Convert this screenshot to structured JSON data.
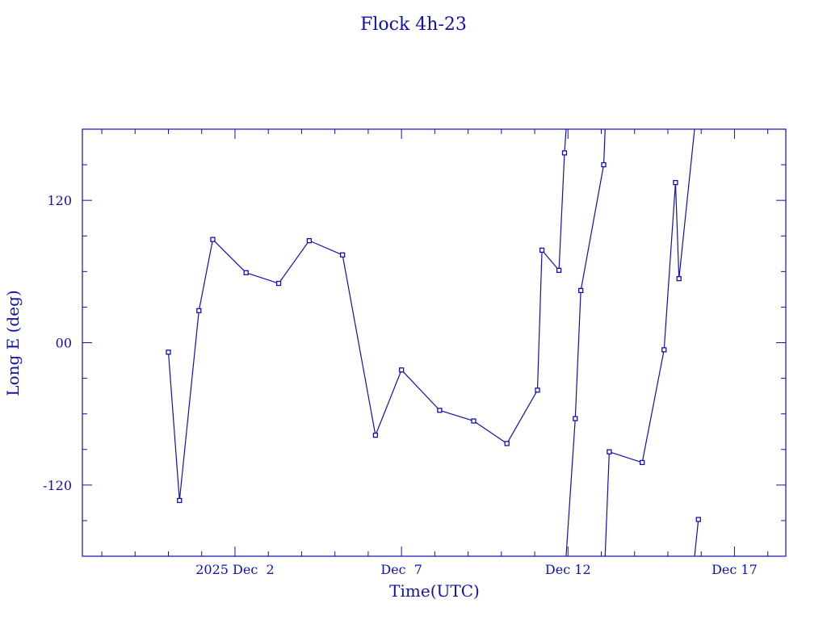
{
  "chart_data": {
    "type": "line",
    "title": "Flock 4h-23",
    "xlabel": "Time(UTC)",
    "ylabel": "Long E (deg)",
    "xlim": [
      "2025-11-27T10:00",
      "2025-12-18T13:00"
    ],
    "ylim": [
      -180,
      180
    ],
    "x_tick_labels": [
      {
        "date": "2025-12-02",
        "label": "2025 Dec  2"
      },
      {
        "date": "2025-12-07",
        "label": "Dec  7"
      },
      {
        "date": "2025-12-12",
        "label": "Dec 12"
      },
      {
        "date": "2025-12-17",
        "label": "Dec 17"
      }
    ],
    "y_tick_labels": [
      {
        "value": 120,
        "label": "120"
      },
      {
        "value": 0,
        "label": "00"
      },
      {
        "value": -120,
        "label": "-120"
      }
    ],
    "y_wraps_at": 180,
    "grid": false,
    "color": "#1010b0",
    "series": [
      {
        "points": [
          {
            "x": "2025-11-30T00:00",
            "y": -8
          },
          {
            "x": "2025-11-30T08:00",
            "y": -133
          },
          {
            "x": "2025-11-30T22:00",
            "y": 27
          },
          {
            "x": "2025-12-01T08:00",
            "y": 87
          },
          {
            "x": "2025-12-02T08:00",
            "y": 59
          },
          {
            "x": "2025-12-03T07:30",
            "y": 50
          },
          {
            "x": "2025-12-04T05:30",
            "y": 86
          },
          {
            "x": "2025-12-05T05:30",
            "y": 74
          },
          {
            "x": "2025-12-06T05:15",
            "y": -78
          },
          {
            "x": "2025-12-07T00:00",
            "y": -23
          },
          {
            "x": "2025-12-08T03:30",
            "y": -57
          },
          {
            "x": "2025-12-09T04:00",
            "y": -66
          },
          {
            "x": "2025-12-10T04:00",
            "y": -85
          },
          {
            "x": "2025-12-11T02:00",
            "y": -40
          },
          {
            "x": "2025-12-11T05:15",
            "y": 78
          },
          {
            "x": "2025-12-11T17:30",
            "y": 61
          },
          {
            "x": "2025-12-11T21:30",
            "y": 160
          },
          {
            "x": "2025-12-12T05:15",
            "y": -64
          },
          {
            "x": "2025-12-12T09:15",
            "y": 44
          },
          {
            "x": "2025-12-13T01:45",
            "y": 150
          },
          {
            "x": "2025-12-13T05:45",
            "y": -92
          },
          {
            "x": "2025-12-14T05:30",
            "y": -101
          },
          {
            "x": "2025-12-14T21:15",
            "y": -6
          },
          {
            "x": "2025-12-15T05:30",
            "y": 135
          },
          {
            "x": "2025-12-15T08:00",
            "y": 54
          },
          {
            "x": "2025-12-15T22:00",
            "y": -149
          }
        ]
      }
    ]
  }
}
